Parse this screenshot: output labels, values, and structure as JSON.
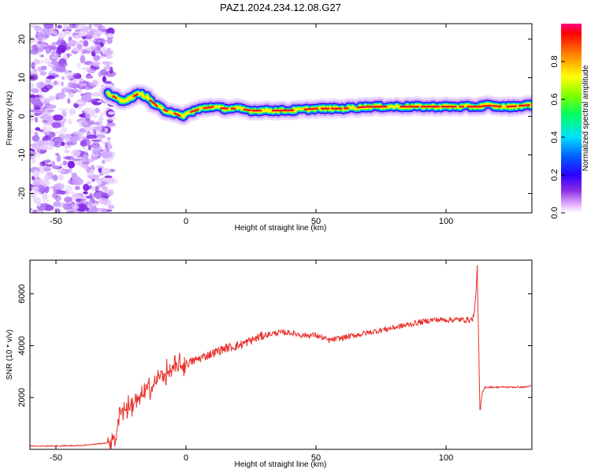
{
  "title": "PAZ1.2024.234.12.08.G27",
  "chart_data": [
    {
      "type": "heatmap",
      "xlabel": "Height of straight line (km)",
      "ylabel": "Frequency (Hz)",
      "xlim": [
        -60,
        133
      ],
      "ylim": [
        -25,
        24
      ],
      "xticks": [
        -50,
        0,
        50,
        100
      ],
      "yticks": [
        -20,
        -10,
        0,
        10,
        20
      ],
      "colorbar": {
        "label": "Normalized spectral amplitude",
        "range": [
          0,
          1
        ],
        "ticks": [
          "0.0",
          "0.2",
          "0.4",
          "0.6",
          "0.8"
        ]
      },
      "ridge": {
        "x": [
          -30,
          -25,
          -22,
          -18,
          -15,
          -12,
          -8,
          -5,
          -2,
          0,
          3,
          6,
          10,
          15,
          20,
          25,
          30,
          40,
          50,
          60,
          70,
          80,
          90,
          100,
          110,
          113,
          115,
          120,
          125,
          133
        ],
        "y": [
          6,
          4,
          4.5,
          6,
          5,
          3,
          1.5,
          1,
          0,
          0.5,
          1.5,
          2,
          2.5,
          2,
          2,
          1.5,
          1.5,
          1.5,
          2,
          2,
          2.5,
          2.5,
          2.5,
          2.5,
          2.5,
          2.5,
          3,
          2.5,
          2.5,
          3
        ]
      },
      "noise_region_x": [
        -60,
        -28
      ]
    },
    {
      "type": "line",
      "xlabel": "Height of straight line (km)",
      "ylabel": "SNR (10 * v/v)",
      "xlim": [
        -60,
        133
      ],
      "ylim": [
        0,
        7300
      ],
      "xticks": [
        -50,
        0,
        50,
        100
      ],
      "yticks": [
        2000,
        4000,
        6000
      ],
      "color": "#e8302a",
      "series": [
        {
          "x": [
            -60,
            -50,
            -40,
            -30,
            -27,
            -25,
            -22,
            -20,
            -18,
            -15,
            -12,
            -10,
            -8,
            -5,
            -2,
            0,
            5,
            10,
            15,
            20,
            25,
            30,
            35,
            40,
            45,
            50,
            55,
            60,
            65,
            70,
            75,
            80,
            85,
            90,
            95,
            100,
            105,
            110,
            111,
            112,
            113,
            114,
            115,
            120,
            125,
            130,
            133
          ],
          "values": [
            130,
            130,
            150,
            250,
            500,
            1500,
            1600,
            1800,
            1900,
            2300,
            2500,
            2800,
            2900,
            3100,
            3200,
            3300,
            3500,
            3700,
            3900,
            4000,
            4200,
            4400,
            4500,
            4500,
            4400,
            4400,
            4200,
            4300,
            4400,
            4500,
            4600,
            4700,
            4800,
            4900,
            5000,
            5000,
            5000,
            5000,
            5300,
            7000,
            1400,
            2200,
            2400,
            2400,
            2400,
            2400,
            2450
          ]
        }
      ]
    }
  ]
}
